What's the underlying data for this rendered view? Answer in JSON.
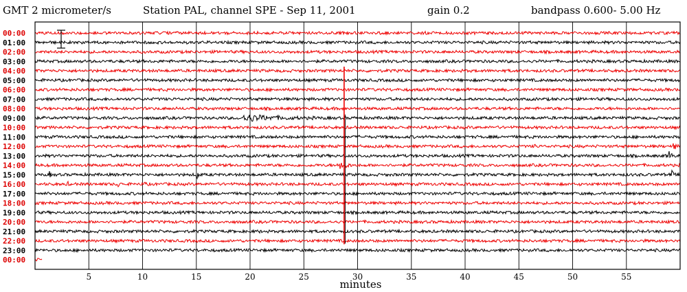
{
  "chart_data": {
    "type": "line",
    "title": {
      "units": "GMT  2 micrometer/s",
      "station": "Station PAL, channel SPE  -  Sep 11, 2001",
      "gain": "gain 0.2",
      "bandpass": "bandpass 0.600- 5.00 Hz"
    },
    "xlabel": "minutes",
    "xlim": [
      0,
      60
    ],
    "xticks": [
      5,
      10,
      15,
      20,
      25,
      30,
      35,
      40,
      45,
      50,
      55
    ],
    "rows": [
      {
        "label": "00:00",
        "color": "red"
      },
      {
        "label": "01:00",
        "color": "black"
      },
      {
        "label": "02:00",
        "color": "red"
      },
      {
        "label": "03:00",
        "color": "black"
      },
      {
        "label": "04:00",
        "color": "red"
      },
      {
        "label": "05:00",
        "color": "black"
      },
      {
        "label": "06:00",
        "color": "red"
      },
      {
        "label": "07:00",
        "color": "black"
      },
      {
        "label": "08:00",
        "color": "red"
      },
      {
        "label": "09:00",
        "color": "black"
      },
      {
        "label": "10:00",
        "color": "red"
      },
      {
        "label": "11:00",
        "color": "black"
      },
      {
        "label": "12:00",
        "color": "red"
      },
      {
        "label": "13:00",
        "color": "black"
      },
      {
        "label": "14:00",
        "color": "red"
      },
      {
        "label": "15:00",
        "color": "black"
      },
      {
        "label": "16:00",
        "color": "red"
      },
      {
        "label": "17:00",
        "color": "black"
      },
      {
        "label": "18:00",
        "color": "red"
      },
      {
        "label": "19:00",
        "color": "black"
      },
      {
        "label": "20:00",
        "color": "red"
      },
      {
        "label": "21:00",
        "color": "black"
      },
      {
        "label": "22:00",
        "color": "red"
      },
      {
        "label": "23:00",
        "color": "black"
      },
      {
        "label": "00:00",
        "color": "red"
      }
    ],
    "trace_end_minute_last_row": 0.7,
    "events": [
      {
        "row": 9,
        "start": 19.2,
        "duration": 8.5,
        "amp": 0.45
      },
      {
        "row": 14,
        "start": 28.3,
        "duration": 1.4,
        "amp": 0.9
      },
      {
        "row": 13,
        "start": 58.8,
        "duration": 0.9,
        "amp": 1.0
      },
      {
        "row": 12,
        "start": 59.3,
        "duration": 0.6,
        "amp": 0.8
      },
      {
        "row": 15,
        "start": 15.0,
        "duration": 0.5,
        "amp": 0.9
      },
      {
        "row": 15,
        "start": 1.3,
        "duration": 0.4,
        "amp": 0.5
      },
      {
        "row": 16,
        "start": 7.7,
        "duration": 0.3,
        "amp": 0.6
      },
      {
        "row": 16,
        "start": 10.1,
        "duration": 0.3,
        "amp": 0.6
      },
      {
        "row": 16,
        "start": 3.0,
        "duration": 0.3,
        "amp": 0.4
      },
      {
        "row": 12,
        "start": 46.4,
        "duration": 0.4,
        "amp": 0.4
      },
      {
        "row": 21,
        "start": 20.6,
        "duration": 0.5,
        "amp": 0.3
      },
      {
        "row": 15,
        "start": 59.1,
        "duration": 0.6,
        "amp": 0.9
      }
    ],
    "spikes": [
      {
        "minute": 28.75,
        "from_row": 4,
        "to_row": 22,
        "color": "red"
      }
    ],
    "colors": {
      "red": "#ee0000",
      "black": "#000000",
      "grid": "#000000",
      "axis_text": "#000000",
      "label_red": "#dd0000"
    }
  }
}
